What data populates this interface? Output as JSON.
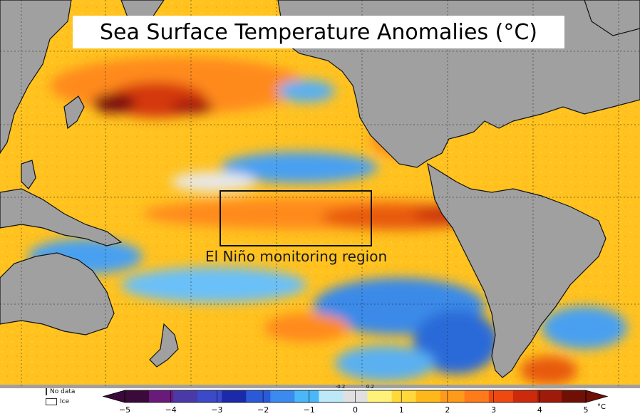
{
  "title": "Sea Surface Temperature Anomalies (°C)",
  "region_label": "El Niño monitoring region",
  "legend": {
    "no_data": "No data",
    "ice": "Ice",
    "no_data_color": "#4a4a4a",
    "ice_color": "#ffffff"
  },
  "colorbar": {
    "unit": "°C",
    "ticks": [
      "−5",
      "−4",
      "−3",
      "−2",
      "−1",
      "0",
      "1",
      "2",
      "3",
      "4",
      "5"
    ],
    "tick_values": [
      -5,
      -4,
      -3,
      -2,
      -1,
      0,
      1,
      2,
      3,
      4,
      5
    ],
    "small_ticks": [
      "-0.2",
      "0.2"
    ],
    "colors": [
      "#3a0a3a",
      "#6a1a7a",
      "#4a3aa8",
      "#3a4ac8",
      "#1a2aa8",
      "#2a5ad8",
      "#3a8af0",
      "#4ab8f8",
      "#bde8f8",
      "#e0e0e0",
      "#fff27a",
      "#ffd83a",
      "#ffb81a",
      "#ff9a1a",
      "#ff7a1a",
      "#ee4a10",
      "#cc2a0a",
      "#a01a0a",
      "#701005"
    ]
  },
  "colors": {
    "land": "#a0a0a0",
    "ocean_warm": "#ffb21a",
    "ocean_hot": "#e85a10",
    "ocean_cool": "#3a8ae8"
  }
}
